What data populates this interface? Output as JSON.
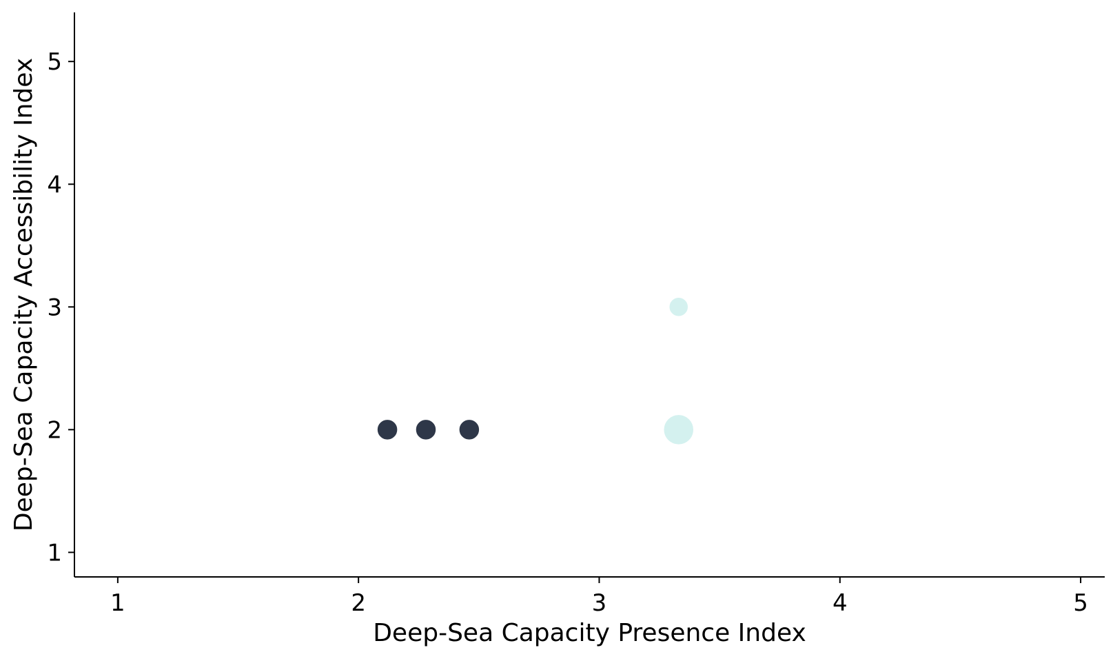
{
  "chart_data": {
    "type": "scatter",
    "title": "",
    "xlabel": "Deep-Sea Capacity Presence Index",
    "ylabel": "Deep-Sea Capacity Accessibility Index",
    "xlim": [
      0.82,
      5.1
    ],
    "ylim": [
      0.8,
      5.4
    ],
    "xticks": [
      1,
      2,
      3,
      4,
      5
    ],
    "yticks": [
      1,
      2,
      3,
      4,
      5
    ],
    "grid": false,
    "legend": "none",
    "points": [
      {
        "x": 2.12,
        "y": 2,
        "size": "medium",
        "color": "#2e3748"
      },
      {
        "x": 2.28,
        "y": 2,
        "size": "medium",
        "color": "#2e3748"
      },
      {
        "x": 2.46,
        "y": 2,
        "size": "medium",
        "color": "#2e3748"
      },
      {
        "x": 3.33,
        "y": 3,
        "size": "small",
        "color": "#d4f1ef"
      },
      {
        "x": 3.33,
        "y": 2,
        "size": "large",
        "color": "#d4f1ef"
      }
    ]
  }
}
